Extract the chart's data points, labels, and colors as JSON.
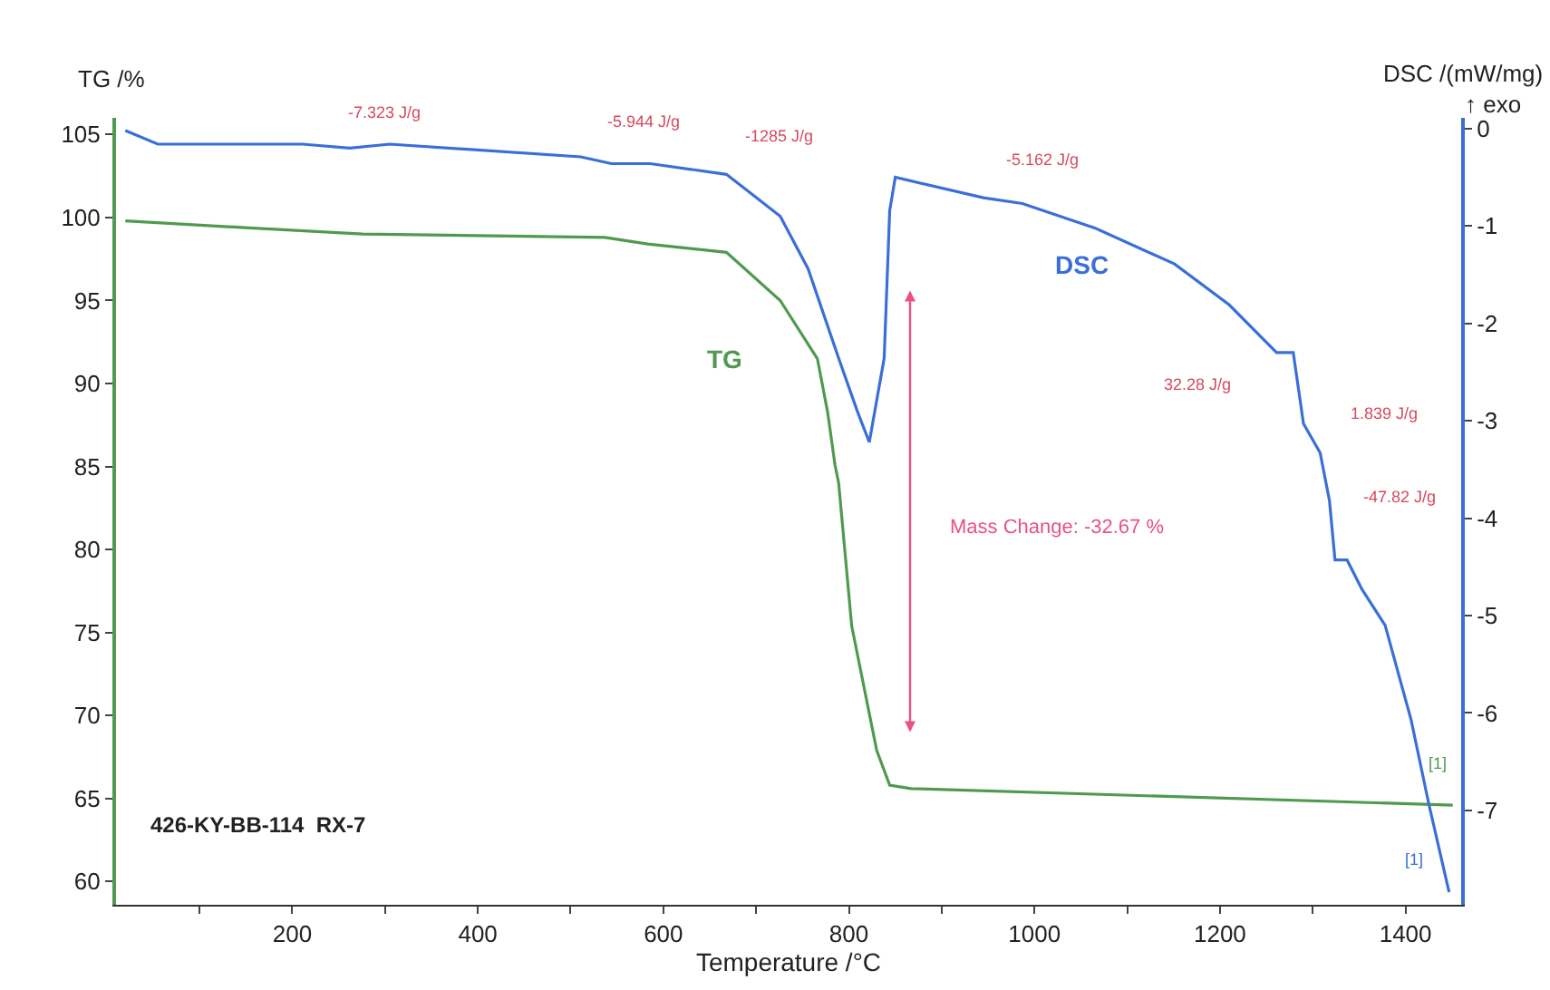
{
  "chart_data": {
    "type": "line",
    "xlabel": "Temperature /°C",
    "ylabel": "TG /%",
    "y2label": "DSC /(mW/mg)",
    "x": [
      20,
      145,
      276,
      537,
      583,
      668,
      726,
      766,
      777,
      785,
      789,
      803,
      830,
      844,
      867,
      1451
    ],
    "series": [
      {
        "name": "TG",
        "color": "#4f9a4f",
        "values": [
          99.8,
          99.4,
          99.0,
          98.8,
          98.4,
          97.9,
          95.0,
          91.5,
          88.3,
          85.1,
          84.0,
          75.4,
          67.9,
          65.8,
          65.6,
          64.6
        ]
      },
      {
        "name": "DSC",
        "color": "#3a6fd8",
        "axis": "y2",
        "x": [
          20,
          55,
          211,
          262,
          305,
          511,
          544,
          586,
          668,
          726,
          756,
          789,
          809,
          822,
          838,
          844,
          850,
          945,
          987,
          1065,
          1151,
          1210,
          1261,
          1279,
          1290,
          1308,
          1318,
          1324,
          1337,
          1353,
          1378,
          1406,
          1425,
          1447
        ],
        "values": [
          -0.02,
          -0.16,
          -0.16,
          -0.2,
          -0.16,
          -0.29,
          -0.36,
          -0.36,
          -0.47,
          -0.9,
          -1.44,
          -2.36,
          -2.9,
          -3.22,
          -2.36,
          -0.84,
          -0.5,
          -0.71,
          -0.77,
          -1.02,
          -1.39,
          -1.81,
          -2.3,
          -2.3,
          -3.03,
          -3.33,
          -3.82,
          -4.43,
          -4.43,
          -4.73,
          -5.1,
          -6.07,
          -6.93,
          -7.84
        ]
      }
    ],
    "xlim": [
      10,
      1460
    ],
    "xticks": [
      {
        "value": 100,
        "label": null
      },
      200,
      {
        "value": 300,
        "label": null
      },
      400,
      {
        "value": 500,
        "label": null
      },
      600,
      {
        "value": 700,
        "label": null
      },
      800,
      {
        "value": 900,
        "label": null
      },
      1000,
      {
        "value": 1100,
        "label": null
      },
      1200,
      {
        "value": 1300,
        "label": null
      },
      1400
    ],
    "ylim": [
      58.6,
      106
    ],
    "yticks": [
      60,
      65,
      70,
      75,
      80,
      85,
      90,
      95,
      100,
      105
    ],
    "y2lim": [
      -7.97,
      0.11
    ],
    "y2ticks": [
      -7,
      -6,
      -5,
      -4,
      -3,
      -2,
      -1,
      0
    ],
    "legend": false,
    "marker": "none",
    "line_style": "solid",
    "annotations": [
      "-7.323 J/g",
      "-5.944 J/g",
      "-1285 J/g",
      "-5.162 J/g",
      "32.28 J/g",
      "1.839 J/g",
      "-47.82 J/g",
      "Mass Change: -32.67 %",
      "426-KY-BB-114  RX-7",
      "[1]",
      "[1]",
      "↑ exo"
    ]
  }
}
